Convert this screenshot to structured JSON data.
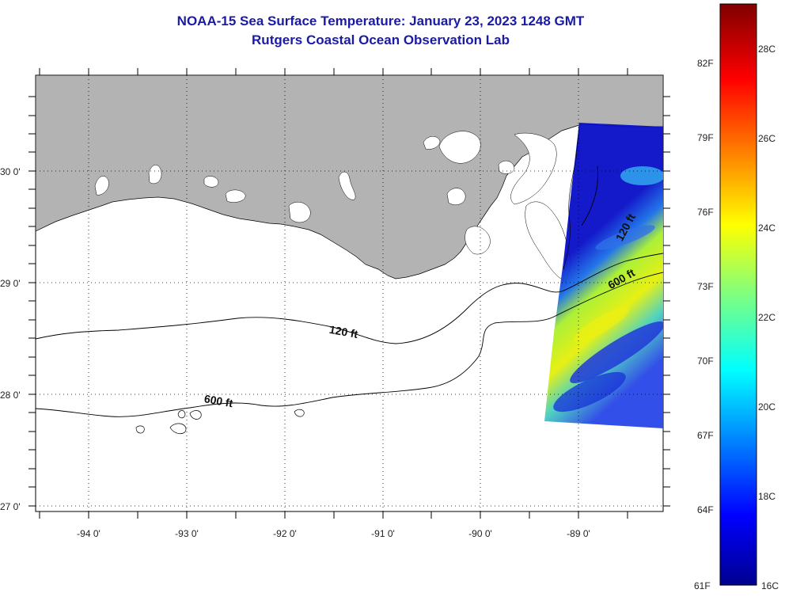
{
  "title": {
    "line1": "NOAA-15 Sea Surface Temperature:  January 23, 2023 1248 GMT",
    "line2": "Rutgers Coastal Ocean Observation Lab"
  },
  "map": {
    "lat_labels": [
      "30 0'",
      "29 0'",
      "28 0'",
      "27 0'"
    ],
    "lon_labels": [
      "-94 0'",
      "-93 0'",
      "-92 0'",
      "-91 0'",
      "-90 0'",
      "-89 0'"
    ],
    "contour_labels": {
      "shallow_west": "120 ft",
      "shallow_east": "120 ft",
      "deep_west": "600 ft",
      "deep_east": "600 ft"
    },
    "land_color": "#b3b3b3"
  },
  "colorbar": {
    "fahrenheit_labels": [
      "82F",
      "79F",
      "76F",
      "73F",
      "70F",
      "67F",
      "64F",
      "61F"
    ],
    "celsius_labels": [
      "28C",
      "26C",
      "24C",
      "22C",
      "20C",
      "18C",
      "16C"
    ],
    "min_c": 16,
    "max_c": 29
  }
}
